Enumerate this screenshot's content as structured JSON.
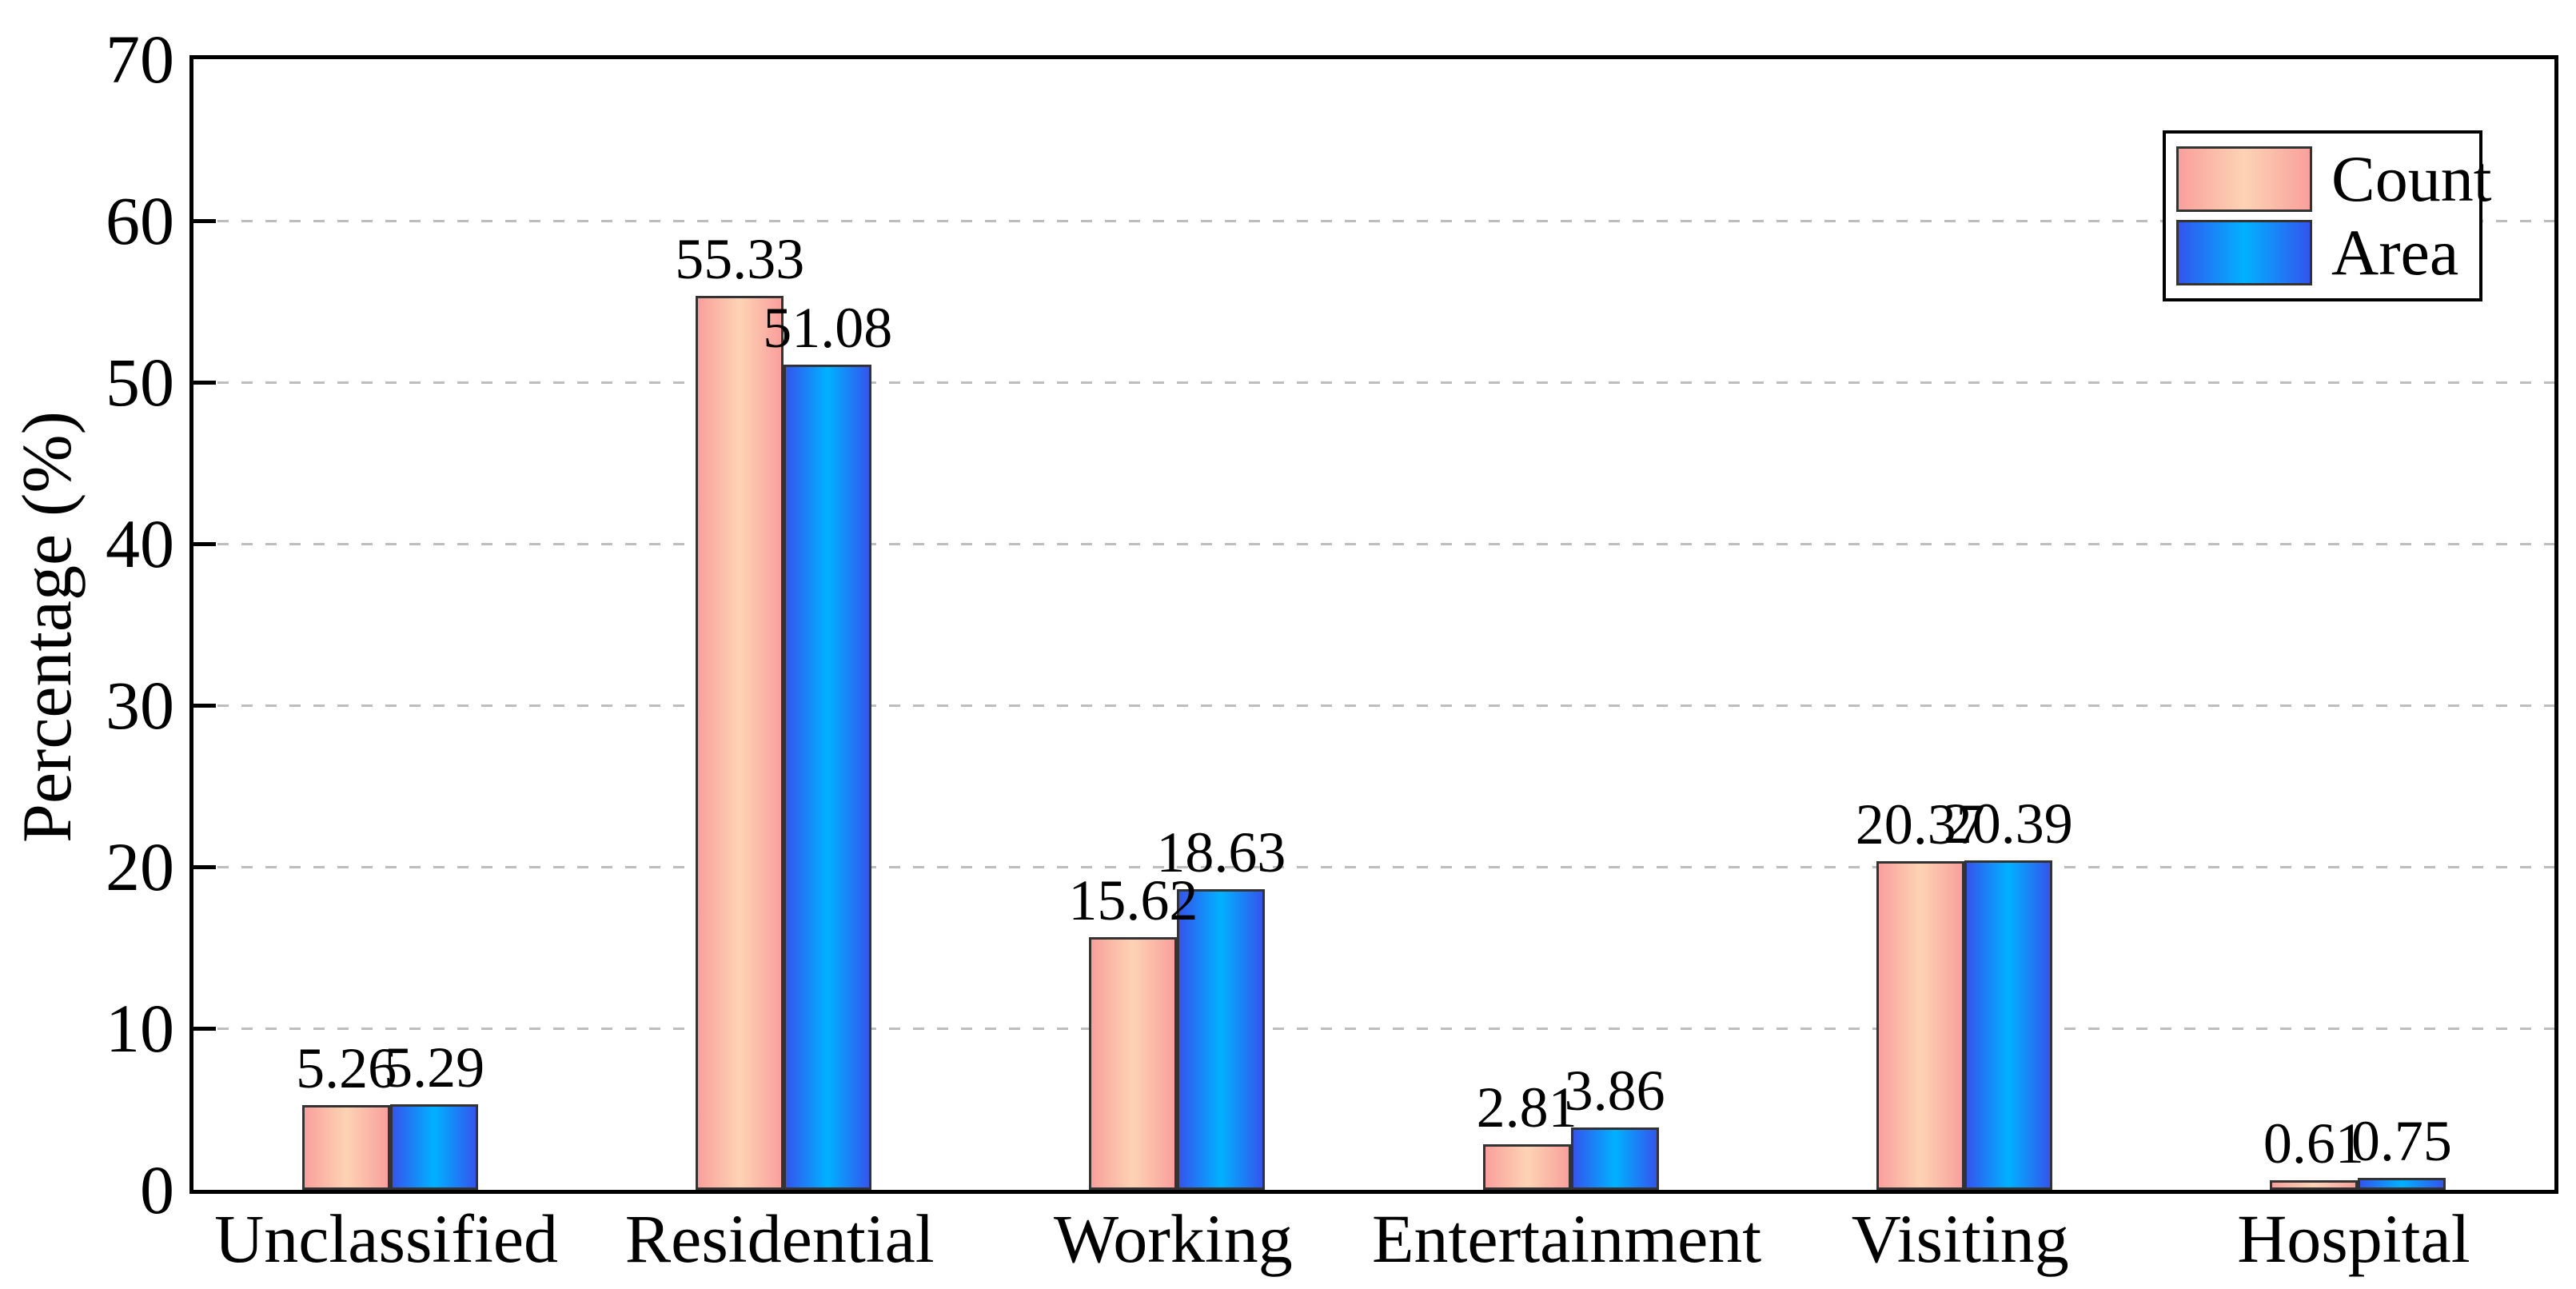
{
  "chart_data": {
    "type": "bar",
    "title": "",
    "xlabel": "",
    "ylabel": "Percentage (%)",
    "ylim": [
      0,
      70
    ],
    "yticks": [
      0,
      10,
      20,
      30,
      40,
      50,
      60,
      70
    ],
    "grid": "horizontal-dashed",
    "legend_position": "top-right",
    "value_labels": true,
    "categories": [
      "Unclassified",
      "Residential",
      "Working",
      "Entertainment",
      "Visiting",
      "Hospital"
    ],
    "series": [
      {
        "name": "Count",
        "values": [
          5.26,
          55.33,
          15.62,
          2.81,
          20.37,
          0.61
        ],
        "edge_color": "#f9a09c",
        "mid_color": "#fdd3b4"
      },
      {
        "name": "Area",
        "values": [
          5.29,
          51.08,
          18.63,
          3.86,
          20.39,
          0.75
        ],
        "edge_color": "#3355ee",
        "mid_color": "#00b2ff"
      }
    ]
  },
  "colors": {
    "background": "#ffffff",
    "axis": "#000000",
    "grid": "#bdbdbd",
    "bar_border": "#333333",
    "text": "#000000"
  }
}
